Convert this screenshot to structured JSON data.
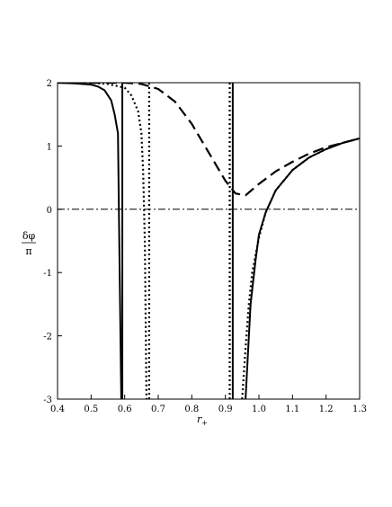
{
  "chart_data": {
    "type": "line",
    "xlabel": "r",
    "xlabel_sub": "+",
    "ylabel_num": "δφ",
    "ylabel_den": "π",
    "xlim": [
      0.4,
      1.3
    ],
    "ylim": [
      -3,
      2
    ],
    "xticks": [
      0.4,
      0.5,
      0.6,
      0.7,
      0.8,
      0.9,
      1.0,
      1.1,
      1.2,
      1.3
    ],
    "xtick_labels": [
      "0.4",
      "0.5",
      "0.6",
      "0.7",
      "0.8",
      "0.9",
      "1.0",
      "1.1",
      "1.2",
      "1.3"
    ],
    "yticks": [
      2,
      1,
      0,
      -1,
      -2,
      -3
    ],
    "ytick_labels": [
      "2",
      "1",
      "0",
      "-1",
      "-2",
      "-3"
    ],
    "grid": false,
    "series": [
      {
        "style": "solid",
        "x": [
          0.4,
          0.45,
          0.5,
          0.52,
          0.54,
          0.56,
          0.57,
          0.58,
          0.585,
          0.59
        ],
        "y": [
          2.0,
          1.99,
          1.97,
          1.94,
          1.88,
          1.72,
          1.5,
          1.2,
          -1.0,
          -3.0
        ]
      },
      {
        "style": "solid",
        "x": [
          0.96,
          0.975,
          0.99,
          1.0,
          1.02,
          1.05,
          1.1,
          1.15,
          1.2,
          1.25,
          1.3
        ],
        "y": [
          -3.0,
          -1.5,
          -0.8,
          -0.4,
          -0.05,
          0.3,
          0.62,
          0.82,
          0.95,
          1.05,
          1.12
        ]
      },
      {
        "style": "dotted",
        "x": [
          0.4,
          0.5,
          0.55,
          0.6,
          0.62,
          0.64,
          0.65,
          0.655,
          0.66,
          0.663,
          0.665
        ],
        "y": [
          2.0,
          2.0,
          1.98,
          1.92,
          1.8,
          1.55,
          1.2,
          0.6,
          -0.5,
          -2.0,
          -3.0
        ]
      },
      {
        "style": "dotted",
        "x": [
          0.95,
          0.96,
          0.97,
          0.98,
          1.0,
          1.02,
          1.05,
          1.1,
          1.15,
          1.2,
          1.25,
          1.3
        ],
        "y": [
          -3.0,
          -2.2,
          -1.5,
          -1.0,
          -0.45,
          -0.05,
          0.3,
          0.62,
          0.82,
          0.95,
          1.05,
          1.12
        ]
      },
      {
        "style": "dashed",
        "x": [
          0.4,
          0.5,
          0.6,
          0.65,
          0.7,
          0.75,
          0.8,
          0.85,
          0.9,
          0.93,
          0.96,
          1.0,
          1.05,
          1.1,
          1.15,
          1.2,
          1.25,
          1.3
        ],
        "y": [
          2.0,
          2.0,
          2.0,
          1.98,
          1.9,
          1.7,
          1.35,
          0.9,
          0.45,
          0.25,
          0.22,
          0.4,
          0.6,
          0.75,
          0.88,
          0.98,
          1.05,
          1.12
        ]
      }
    ],
    "vertical_lines": [
      {
        "x": 0.593,
        "style": "solid"
      },
      {
        "x": 0.673,
        "style": "dotted"
      },
      {
        "x": 0.913,
        "style": "dotted"
      },
      {
        "x": 0.922,
        "style": "solid"
      }
    ],
    "horizontal_lines": [
      {
        "y": 0,
        "style": "dashdot"
      }
    ]
  }
}
